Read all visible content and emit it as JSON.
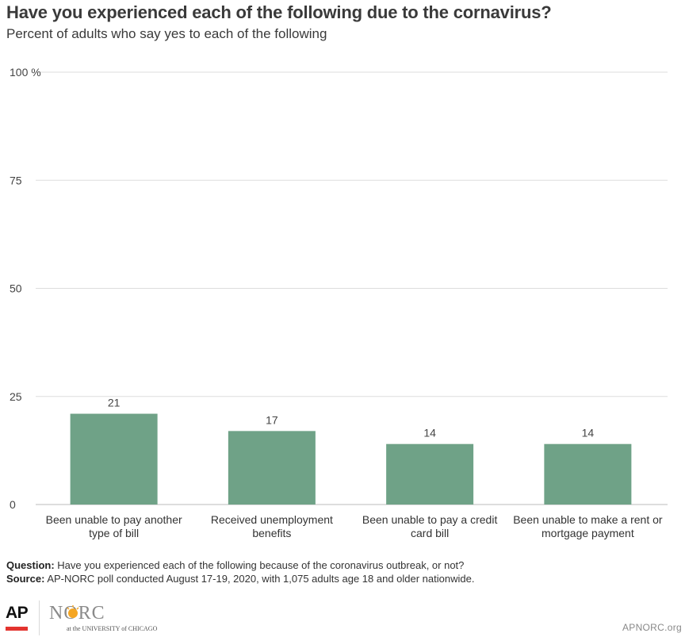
{
  "header": {
    "title": "Have you experienced each of the following due to the cornavirus?",
    "subtitle": "Percent of adults who say yes to each of the following"
  },
  "chart_data": {
    "type": "bar",
    "categories": [
      [
        "Been unable to pay another",
        "type of bill"
      ],
      [
        "Received unemployment",
        "benefits"
      ],
      [
        "Been unable to pay a credit",
        "card bill"
      ],
      [
        "Been unable to make a rent or",
        "mortgage payment"
      ]
    ],
    "values": [
      21,
      17,
      14,
      14
    ],
    "ylim": [
      0,
      100
    ],
    "yticks": [
      0,
      25,
      50,
      75,
      100
    ],
    "ytick_labels": [
      "0",
      "25",
      "50",
      "75",
      "100"
    ],
    "y_unit_suffix": "%",
    "grid": true,
    "bar_color": "#6fa287",
    "grid_color": "#dddddd"
  },
  "notes": {
    "question_label": "Question:",
    "question_text": "Have you experienced each of the following because of the coronavirus outbreak, or not?",
    "source_label": "Source:",
    "source_text": "AP-NORC poll conducted August 17-19, 2020, with 1,075 adults age 18 and older nationwide."
  },
  "footer": {
    "ap_logo_text": "AP",
    "norc_logo_text": "NORC",
    "norc_logo_subtext": "at the UNIVERSITY of CHICAGO",
    "site": "APNORC.org"
  },
  "colors": {
    "accent_red": "#e3342f",
    "norc_orange": "#f5a623"
  }
}
